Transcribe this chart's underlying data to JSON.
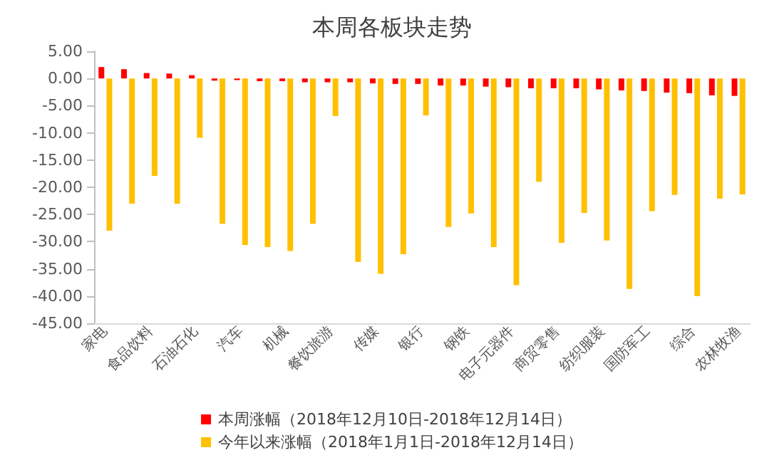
{
  "chart_data": {
    "type": "bar",
    "title": "本周各板块走势",
    "categories": [
      "家电",
      null,
      "食品饮料",
      null,
      "石油石化",
      null,
      "汽车",
      null,
      "机械",
      null,
      "餐饮旅游",
      null,
      "传媒",
      null,
      "银行",
      null,
      "钢铁",
      null,
      "电子元器件",
      null,
      "商贸零售",
      null,
      "纺织服装",
      null,
      "国防军工",
      null,
      "综合",
      null,
      "农林牧渔"
    ],
    "series": [
      {
        "name": "本周涨幅（2018年12月10日-2018年12月14日）",
        "color": "#ff0000",
        "values": [
          2.1,
          1.7,
          1.0,
          0.9,
          0.6,
          -0.4,
          -0.3,
          -0.5,
          -0.5,
          -0.7,
          -0.7,
          -0.7,
          -0.9,
          -1.0,
          -1.0,
          -1.3,
          -1.3,
          -1.5,
          -1.6,
          -1.8,
          -1.8,
          -1.8,
          -2.0,
          -2.2,
          -2.3,
          -2.6,
          -2.7,
          -3.1,
          -3.2
        ]
      },
      {
        "name": "今年以来涨幅（2018年1月1日-2018年12月14日）",
        "color": "#ffc000",
        "values": [
          -28.0,
          -23.0,
          -17.9,
          -23.0,
          -10.9,
          -26.7,
          -30.6,
          -31.0,
          -31.7,
          -26.7,
          -6.9,
          -33.7,
          -35.9,
          -32.3,
          -6.8,
          -27.3,
          -24.8,
          -31.0,
          -38.0,
          -19.0,
          -30.2,
          -24.7,
          -29.8,
          -38.7,
          -24.4,
          -21.4,
          -40.0,
          -22.1,
          -21.3
        ]
      }
    ],
    "ylim": [
      -45,
      5
    ],
    "yticks": [
      {
        "value": 5,
        "label": "5.00"
      },
      {
        "value": 0,
        "label": "0.00"
      },
      {
        "value": -5,
        "label": "-5.00"
      },
      {
        "value": -10,
        "label": "-10.00"
      },
      {
        "value": -15,
        "label": "-15.00"
      },
      {
        "value": -20,
        "label": "-20.00"
      },
      {
        "value": -25,
        "label": "-25.00"
      },
      {
        "value": -30,
        "label": "-30.00"
      },
      {
        "value": -35,
        "label": "-35.00"
      },
      {
        "value": -40,
        "label": "-40.00"
      },
      {
        "value": -45,
        "label": "-45.00"
      }
    ],
    "grid": false,
    "legend": "bottom"
  }
}
